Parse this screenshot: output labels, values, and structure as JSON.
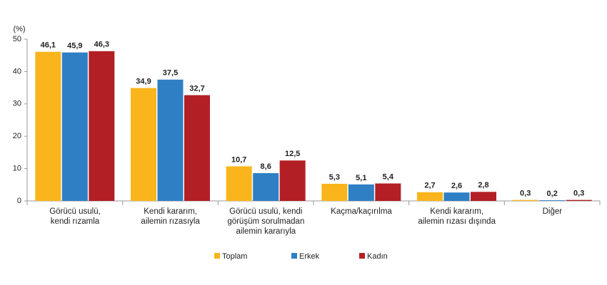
{
  "chart_data": {
    "type": "bar",
    "y_label": "(%)",
    "categories": [
      "Görücü usulü,\nkendi rızamla",
      "Kendi kararım,\nailemin rızasıyla",
      "Görücü usulü, kendi\ngörüşüm sorulmadan\nailemin kararıyla",
      "Kaçma/kaçırılma",
      "Kendi kararım,\nailemin rızası dışında",
      "Diğer"
    ],
    "series": [
      {
        "name": "Toplam",
        "color": "#f9b51b",
        "values": [
          46.1,
          34.9,
          10.7,
          5.3,
          2.7,
          0.3
        ],
        "value_labels": [
          "46,1",
          "34,9",
          "10,7",
          "5,3",
          "2,7",
          "0,3"
        ]
      },
      {
        "name": "Erkek",
        "color": "#2f7fc4",
        "values": [
          45.9,
          37.5,
          8.6,
          5.1,
          2.6,
          0.2
        ],
        "value_labels": [
          "45,9",
          "37,5",
          "8,6",
          "5,1",
          "2,6",
          "0,2"
        ]
      },
      {
        "name": "Kadın",
        "color": "#b21f24",
        "values": [
          46.3,
          32.7,
          12.5,
          5.4,
          2.8,
          0.3
        ],
        "value_labels": [
          "46,3",
          "32,7",
          "12,5",
          "5,4",
          "2,8",
          "0,3"
        ]
      }
    ],
    "ylim": [
      0,
      50
    ],
    "yticks": [
      0,
      10,
      20,
      30,
      40,
      50
    ],
    "grid": false,
    "legend": "bottom"
  }
}
